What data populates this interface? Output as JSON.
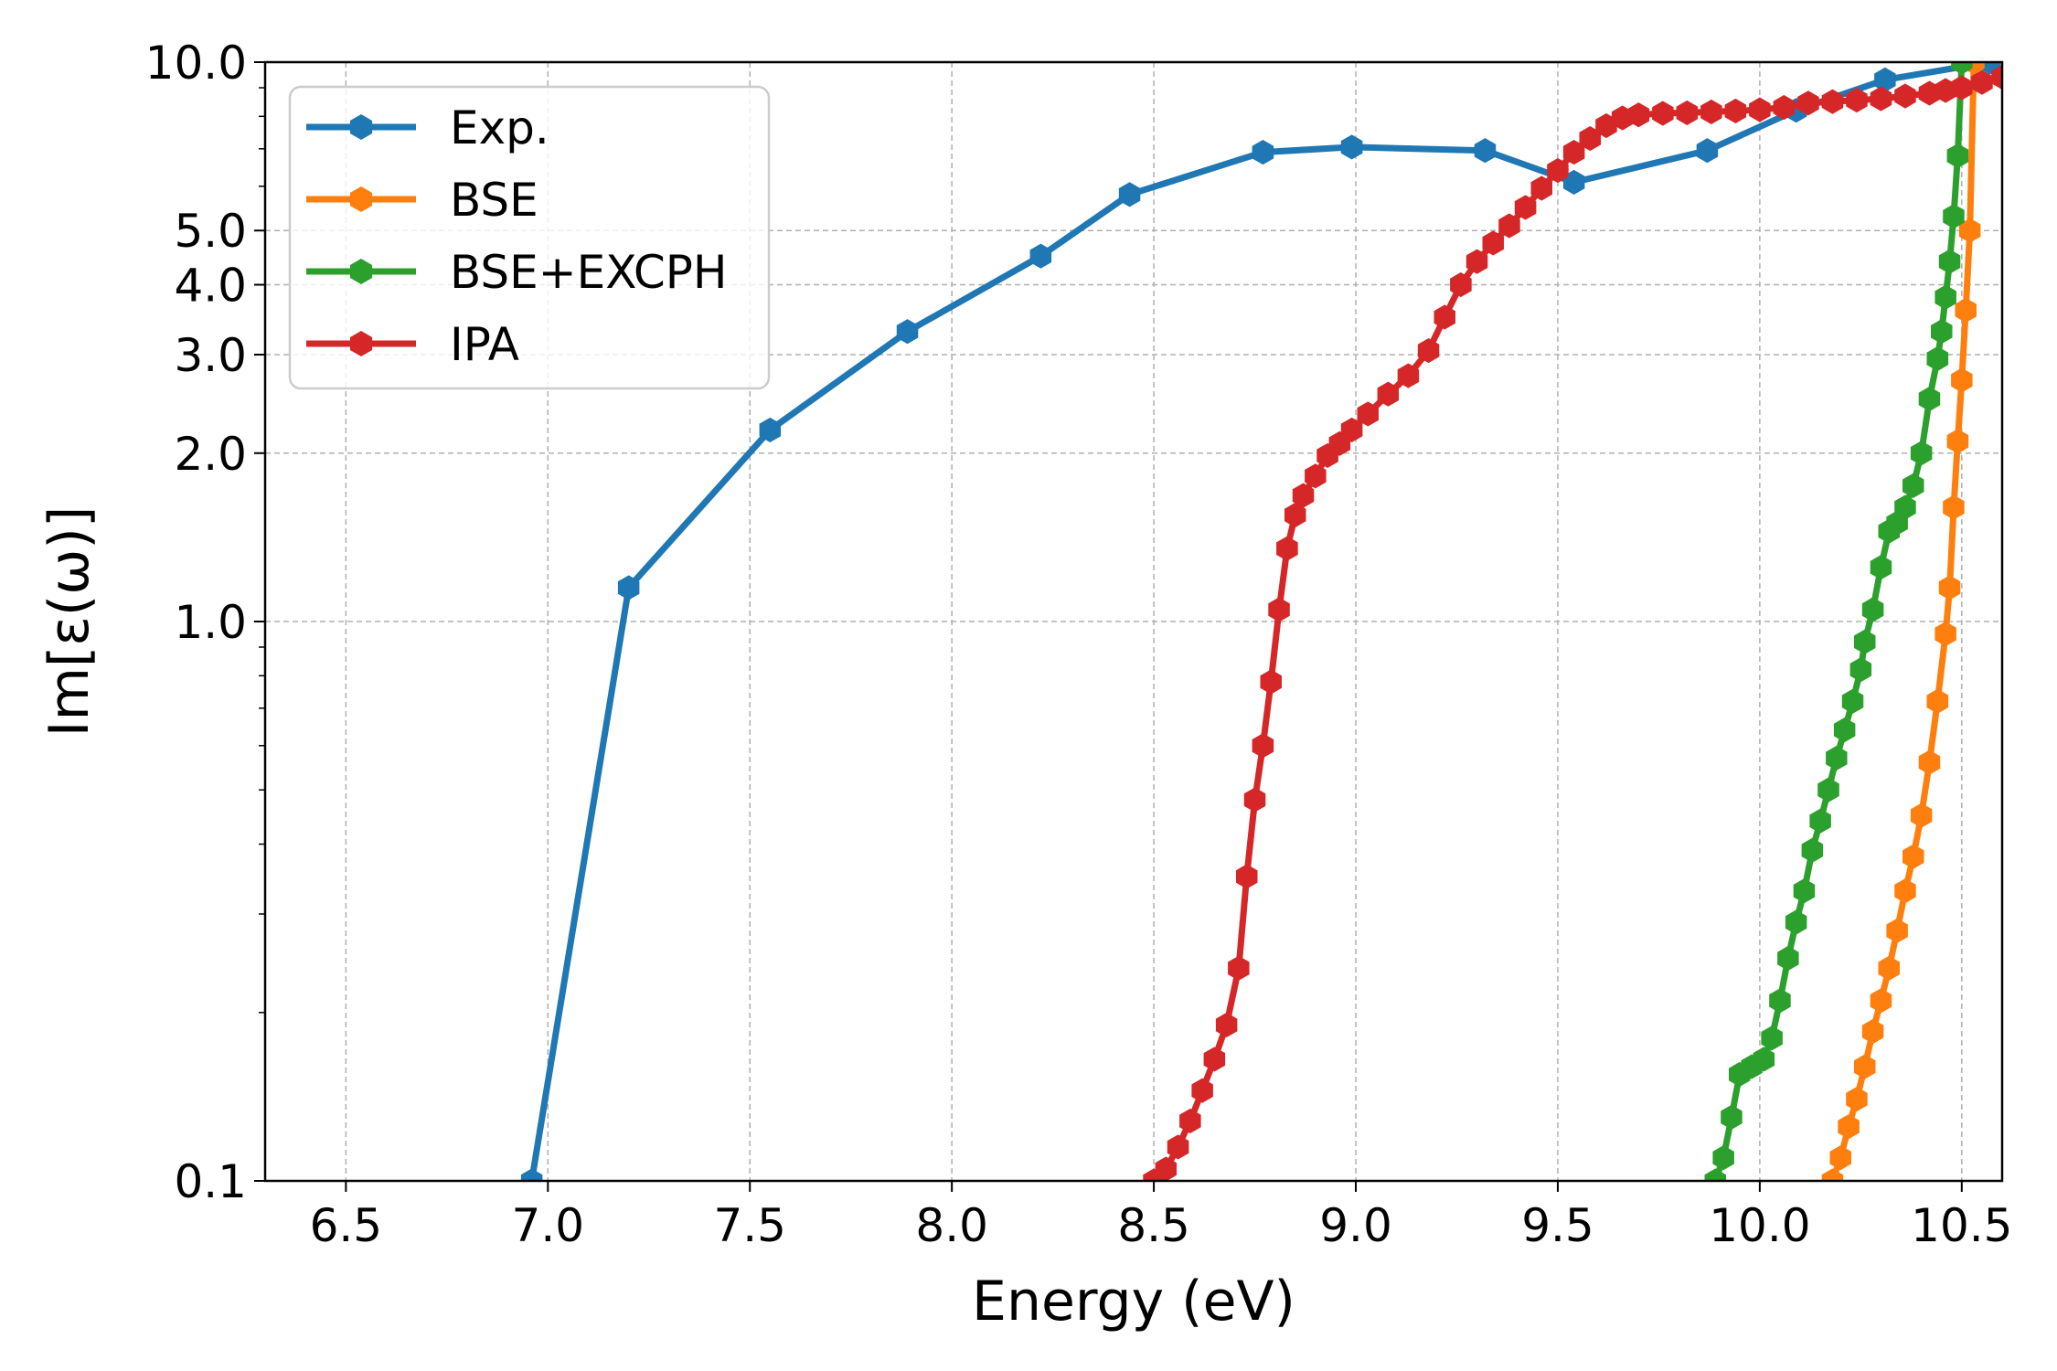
{
  "chart_data": {
    "type": "line",
    "title": "",
    "xlabel": "Energy (eV)",
    "ylabel": "Im[ε(ω)]",
    "x_scale": "linear",
    "y_scale": "log",
    "xlim": [
      6.3,
      10.6
    ],
    "ylim": [
      0.1,
      10.0
    ],
    "xticks": [
      6.5,
      7.0,
      7.5,
      8.0,
      8.5,
      9.0,
      9.5,
      10.0,
      10.5
    ],
    "xtick_labels": [
      "6.5",
      "7.0",
      "7.5",
      "8.0",
      "8.5",
      "9.0",
      "9.5",
      "10.0",
      "10.5"
    ],
    "yticks": [
      0.1,
      1.0,
      2.0,
      3.0,
      4.0,
      5.0,
      10.0
    ],
    "ytick_labels": [
      "0.1",
      "1.0",
      "2.0",
      "3.0",
      "4.0",
      "5.0",
      "10.0"
    ],
    "grid": true,
    "legend_position": "upper-left",
    "series": [
      {
        "name": "Exp.",
        "color": "#1f77b4",
        "marker": "hexagon",
        "x": [
          6.96,
          7.2,
          7.55,
          7.89,
          8.22,
          8.44,
          8.77,
          8.99,
          9.32,
          9.54,
          9.87,
          10.09,
          10.31,
          10.57
        ],
        "y": [
          0.1,
          1.15,
          2.2,
          3.3,
          4.5,
          5.8,
          6.9,
          7.05,
          6.95,
          6.1,
          6.95,
          8.2,
          9.3,
          10.0
        ]
      },
      {
        "name": "BSE",
        "color": "#ff7f0e",
        "marker": "hexagon",
        "x": [
          10.18,
          10.2,
          10.22,
          10.24,
          10.26,
          10.28,
          10.3,
          10.32,
          10.34,
          10.36,
          10.38,
          10.4,
          10.42,
          10.44,
          10.46,
          10.47,
          10.48,
          10.49,
          10.5,
          10.51,
          10.52,
          10.53
        ],
        "y": [
          0.1,
          0.11,
          0.125,
          0.14,
          0.16,
          0.185,
          0.21,
          0.24,
          0.28,
          0.33,
          0.38,
          0.45,
          0.56,
          0.72,
          0.95,
          1.15,
          1.6,
          2.1,
          2.7,
          3.6,
          5.0,
          10.0
        ]
      },
      {
        "name": "BSE+EXCPH",
        "color": "#2ca02c",
        "marker": "hexagon",
        "x": [
          9.89,
          9.91,
          9.93,
          9.95,
          9.98,
          10.01,
          10.03,
          10.05,
          10.07,
          10.09,
          10.11,
          10.13,
          10.15,
          10.17,
          10.19,
          10.21,
          10.23,
          10.25,
          10.26,
          10.28,
          10.3,
          10.32,
          10.34,
          10.36,
          10.38,
          10.4,
          10.42,
          10.44,
          10.45,
          10.46,
          10.47,
          10.48,
          10.49,
          10.5
        ],
        "y": [
          0.1,
          0.11,
          0.13,
          0.155,
          0.16,
          0.165,
          0.18,
          0.21,
          0.25,
          0.29,
          0.33,
          0.39,
          0.44,
          0.5,
          0.57,
          0.64,
          0.72,
          0.82,
          0.92,
          1.05,
          1.25,
          1.45,
          1.5,
          1.6,
          1.75,
          2.0,
          2.5,
          2.95,
          3.3,
          3.8,
          4.4,
          5.3,
          6.8,
          10.0
        ]
      },
      {
        "name": "IPA",
        "color": "#d62728",
        "marker": "hexagon",
        "x": [
          8.5,
          8.53,
          8.56,
          8.59,
          8.62,
          8.65,
          8.68,
          8.71,
          8.73,
          8.75,
          8.77,
          8.79,
          8.81,
          8.83,
          8.85,
          8.87,
          8.9,
          8.93,
          8.96,
          8.99,
          9.03,
          9.08,
          9.13,
          9.18,
          9.22,
          9.26,
          9.3,
          9.34,
          9.38,
          9.42,
          9.46,
          9.5,
          9.54,
          9.58,
          9.62,
          9.66,
          9.7,
          9.76,
          9.82,
          9.88,
          9.94,
          10.0,
          10.06,
          10.12,
          10.18,
          10.24,
          10.3,
          10.36,
          10.42,
          10.46,
          10.5,
          10.55,
          10.6
        ],
        "y": [
          0.1,
          0.105,
          0.115,
          0.128,
          0.145,
          0.165,
          0.19,
          0.24,
          0.35,
          0.48,
          0.6,
          0.78,
          1.05,
          1.35,
          1.55,
          1.68,
          1.82,
          1.98,
          2.08,
          2.2,
          2.35,
          2.55,
          2.75,
          3.05,
          3.5,
          4.0,
          4.4,
          4.75,
          5.1,
          5.5,
          5.95,
          6.4,
          6.9,
          7.3,
          7.7,
          7.95,
          8.05,
          8.1,
          8.12,
          8.15,
          8.18,
          8.22,
          8.3,
          8.45,
          8.5,
          8.55,
          8.6,
          8.7,
          8.8,
          8.9,
          9.0,
          9.2,
          9.4
        ]
      }
    ]
  }
}
